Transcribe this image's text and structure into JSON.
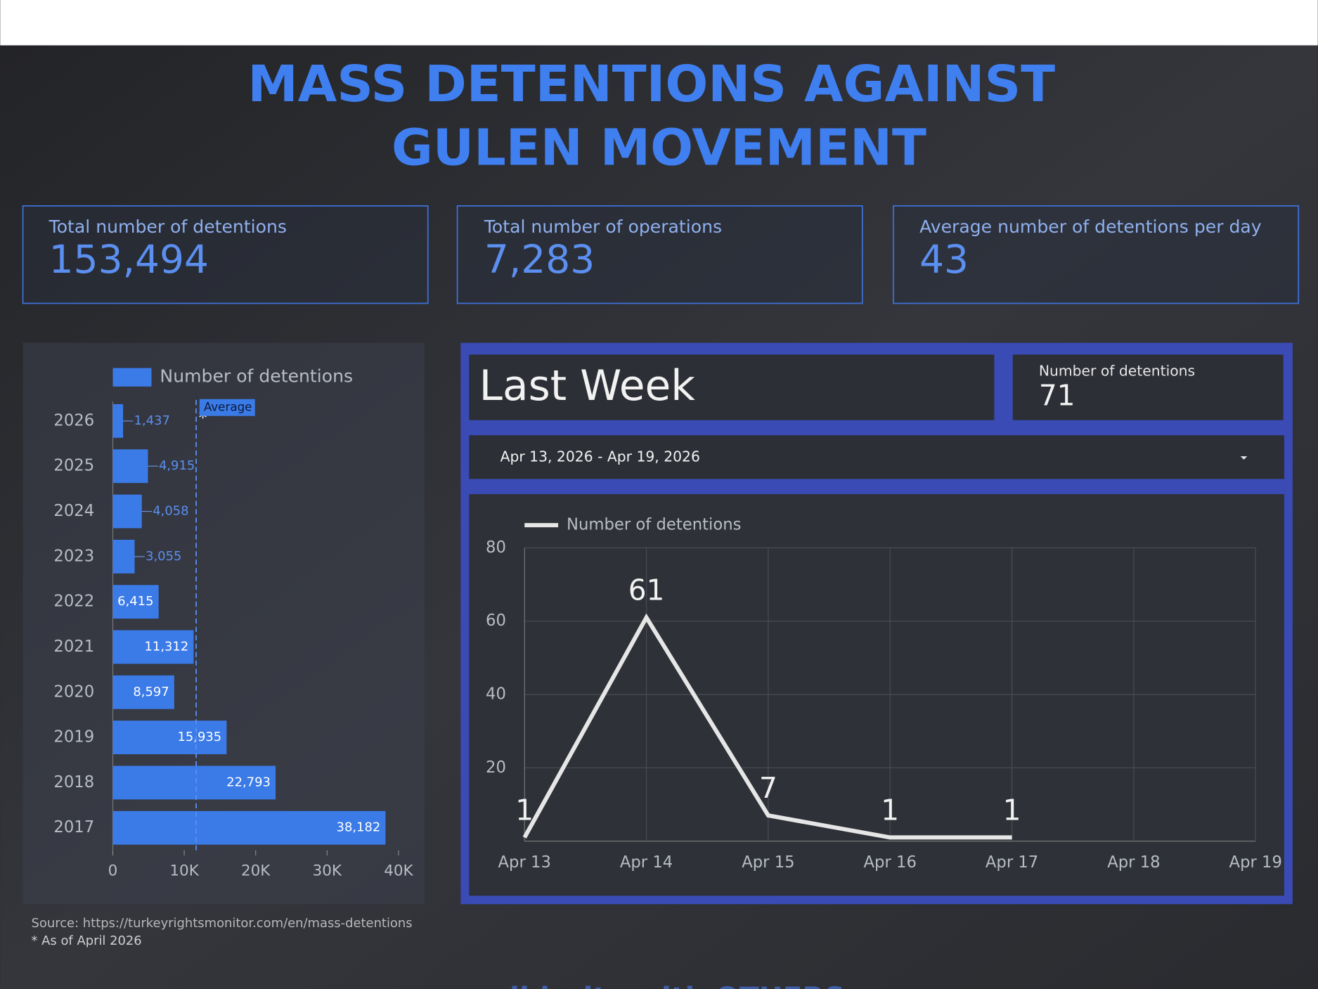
{
  "header": {
    "title_line1": "MASS DETENTIONS AGAINST",
    "title_line2": "GULEN MOVEMENT"
  },
  "kpis": [
    {
      "label": "Total number of detentions",
      "value": "153,494"
    },
    {
      "label": "Total number of operations",
      "value": "7,283"
    },
    {
      "label": "Average number of detentions per day",
      "value": "43"
    }
  ],
  "chart_data": [
    {
      "type": "bar",
      "orientation": "horizontal",
      "categories": [
        "2026",
        "2025",
        "2024",
        "2023",
        "2022",
        "2021",
        "2020",
        "2019",
        "2018",
        "2017"
      ],
      "series": [
        {
          "name": "Number of detentions",
          "color": "#3b7be8",
          "values": [
            1437,
            4915,
            4058,
            3055,
            6415,
            11312,
            8597,
            15935,
            22793,
            38182
          ],
          "value_labels": [
            "1,437",
            "4,915",
            "4,058",
            "3,055",
            "6,415",
            "11,312",
            "8,597",
            "15,935",
            "22,793",
            "38,182"
          ]
        }
      ],
      "annotation": "*",
      "reference_line": {
        "label": "Average",
        "value": 11670
      },
      "xlim": [
        0,
        40000
      ],
      "xticks": [
        0,
        {
          "value": 10000,
          "label": "10K"
        },
        {
          "value": 20000,
          "label": "20K"
        },
        {
          "value": 30000,
          "label": "30K"
        },
        {
          "value": 40000,
          "label": "40K"
        }
      ],
      "legend": "top"
    },
    {
      "type": "line",
      "categories": [
        "Apr 13",
        "Apr 14",
        "Apr 15",
        "Apr 16",
        "Apr 17",
        "Apr 18",
        "Apr 19"
      ],
      "series": [
        {
          "name": "Number of detentions",
          "color": "#e6e6e6",
          "values": [
            1,
            61,
            7,
            1,
            1,
            null,
            null
          ]
        }
      ],
      "ylim": [
        0,
        80
      ],
      "yticks": [
        20,
        40,
        60,
        80
      ],
      "grid": true,
      "legend": "top-left"
    }
  ],
  "last_week": {
    "title": "Last Week",
    "scorecard": {
      "label": "Number of detentions",
      "value": 71
    },
    "date_range": "Apr 13, 2026 - Apr 19, 2026"
  },
  "footer": {
    "source": "Source: https://turkeyrightsmonitor.com/en/mass-detentions",
    "note": "* As of April 2026",
    "banner": "solidarity with OTHERS"
  }
}
